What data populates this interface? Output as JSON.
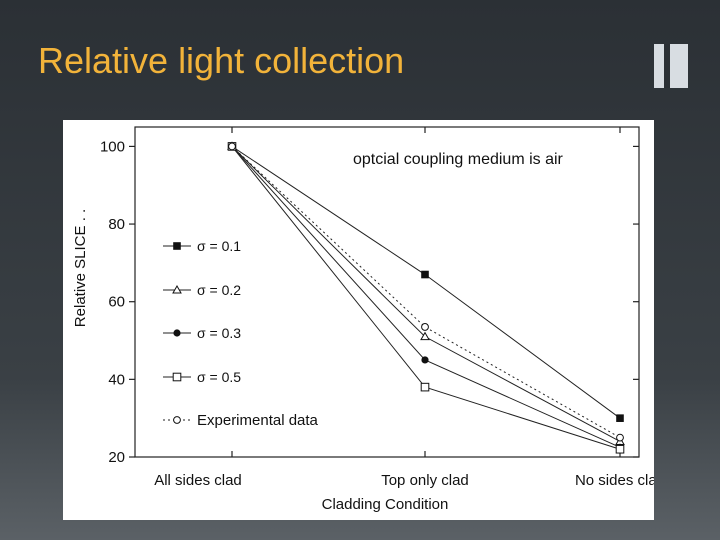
{
  "slide": {
    "title": "Relative light collection"
  },
  "chart_data": {
    "type": "line",
    "annotation": "optcial coupling medium is air",
    "xlabel": "Cladding Condition",
    "ylabel": "Relative SLICE . .",
    "categories": [
      "All sides clad",
      "Top only clad",
      "No sides clad"
    ],
    "ylim": [
      20,
      105
    ],
    "yticks": [
      20,
      40,
      60,
      80,
      100
    ],
    "legend_position": "left",
    "series": [
      {
        "name": "σ = 0.1",
        "marker": "square-filled",
        "dashed": false,
        "values": [
          100,
          67,
          30
        ]
      },
      {
        "name": "σ = 0.2",
        "marker": "triangle-open",
        "dashed": false,
        "values": [
          100,
          51,
          24
        ]
      },
      {
        "name": "σ = 0.3",
        "marker": "circle-filled",
        "dashed": false,
        "values": [
          100,
          45,
          22.5
        ]
      },
      {
        "name": "σ = 0.5",
        "marker": "square-open",
        "dashed": false,
        "values": [
          100,
          38,
          22
        ]
      },
      {
        "name": "Experimental data",
        "marker": "circle-open",
        "dashed": true,
        "values": [
          100,
          53.5,
          25
        ]
      }
    ]
  }
}
